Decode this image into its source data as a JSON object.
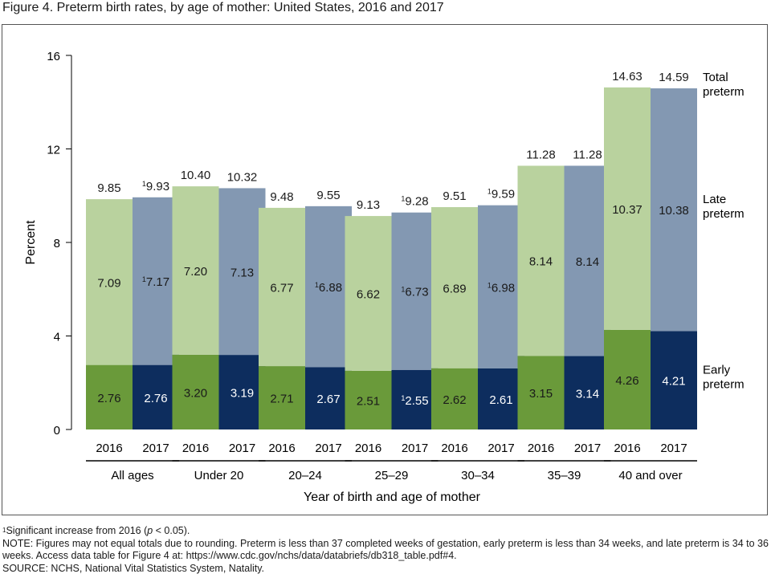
{
  "title": "Figure 4. Preterm birth rates, by age of mother: United States, 2016 and 2017",
  "footnotes": {
    "sig_marker": "1",
    "sig_text": "Significant increase from 2016 (",
    "sig_p": "p",
    "sig_tail": " < 0.05).",
    "note": "NOTE: Figures may not equal totals due to rounding. Preterm is less than 37 completed weeks of gestation, early preterm is less than 34 weeks, and late preterm is 34 to 36 weeks. Access data table for Figure 4 at: https://www.cdc.gov/nchs/data/databriefs/db318_table.pdf#4.",
    "source": "SOURCE: NCHS, National Vital Statistics System, Natality."
  },
  "colors": {
    "early_2016": "#6a9a3a",
    "late_2016": "#b9d29e",
    "early_2017": "#0d2d5e",
    "late_2017": "#8398b2",
    "axis": "#000000"
  },
  "chart_data": {
    "type": "bar",
    "stacked": true,
    "ylabel": "Percent",
    "xlabel": "Year of birth and age of mother",
    "ylim": [
      0,
      16
    ],
    "yticks": [
      "0",
      "4",
      "8",
      "12",
      "16"
    ],
    "grid": false,
    "groups": [
      "All ages",
      "Under 20",
      "20–24",
      "25–29",
      "30–34",
      "35–39",
      "40 and over"
    ],
    "years": [
      "2016",
      "2017"
    ],
    "stack_labels": [
      "Early preterm",
      "Late preterm",
      "Total preterm"
    ],
    "early_preterm": {
      "2016": [
        2.76,
        3.2,
        2.71,
        2.51,
        2.62,
        3.15,
        4.26
      ],
      "2017": [
        2.76,
        3.19,
        2.67,
        2.55,
        2.61,
        3.14,
        4.21
      ]
    },
    "late_preterm": {
      "2016": [
        7.09,
        7.2,
        6.77,
        6.62,
        6.89,
        8.14,
        10.37
      ],
      "2017": [
        7.17,
        7.13,
        6.88,
        6.73,
        6.98,
        8.14,
        10.38
      ]
    },
    "total_preterm": {
      "2016": [
        9.85,
        10.4,
        9.48,
        9.13,
        9.51,
        11.28,
        14.63
      ],
      "2017": [
        9.93,
        10.32,
        9.55,
        9.28,
        9.59,
        11.28,
        14.59
      ]
    },
    "labels": {
      "early": {
        "2016": [
          "2.76",
          "3.20",
          "2.71",
          "2.51",
          "2.62",
          "3.15",
          "4.26"
        ],
        "2017": [
          "2.76",
          "3.19",
          "2.67",
          "2.55",
          "2.61",
          "3.14",
          "4.21"
        ]
      },
      "late": {
        "2016": [
          "7.09",
          "7.20",
          "6.77",
          "6.62",
          "6.89",
          "8.14",
          "10.37"
        ],
        "2017": [
          "7.17",
          "7.13",
          "6.88",
          "6.73",
          "6.98",
          "8.14",
          "10.38"
        ]
      },
      "total": {
        "2016": [
          "9.85",
          "10.40",
          "9.48",
          "9.13",
          "9.51",
          "11.28",
          "14.63"
        ],
        "2017": [
          "9.93",
          "10.32",
          "9.55",
          "9.28",
          "9.59",
          "11.28",
          "14.59"
        ]
      }
    },
    "significant_2017": {
      "early": [
        false,
        false,
        false,
        true,
        false,
        false,
        false
      ],
      "late": [
        true,
        false,
        true,
        true,
        true,
        false,
        false
      ],
      "total": [
        true,
        false,
        false,
        true,
        true,
        false,
        false
      ]
    },
    "significance_marker": "1"
  }
}
